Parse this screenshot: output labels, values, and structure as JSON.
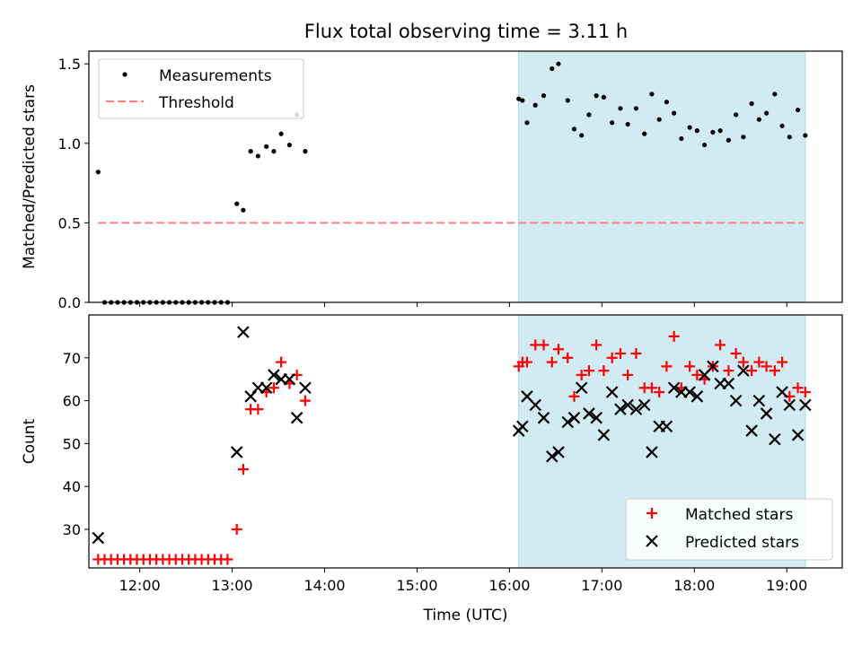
{
  "title": "Flux total observing time = 3.11 h",
  "colors": {
    "shade": "#add8e6",
    "threshold": "#ff7f7f",
    "matched": "#ff0000",
    "predicted": "#000000",
    "measurement": "#000000"
  },
  "chart_data": [
    {
      "type": "scatter",
      "ylabel": "Matched/Predicted stars",
      "xlim": [
        11.45,
        19.6
      ],
      "ylim": [
        0,
        1.58
      ],
      "x_is_time_of_day_hours": true,
      "grid": false,
      "legend_position": "top-left",
      "shaded_interval": [
        16.1,
        19.2
      ],
      "yticks": [
        "0.0",
        "0.5",
        "1.0",
        "1.5"
      ],
      "ytick_values": [
        0,
        0.5,
        1.0,
        1.5
      ],
      "threshold": {
        "name": "Threshold",
        "value": 0.5,
        "x": [
          11.55,
          19.18
        ]
      },
      "series": [
        {
          "name": "Measurements",
          "points": [
            [
              11.55,
              0.82
            ],
            [
              11.62,
              0.0
            ],
            [
              11.69,
              0.0
            ],
            [
              11.76,
              0.0
            ],
            [
              11.83,
              0.0
            ],
            [
              11.9,
              0.0
            ],
            [
              11.97,
              0.0
            ],
            [
              12.04,
              0.0
            ],
            [
              12.11,
              0.0
            ],
            [
              12.18,
              0.0
            ],
            [
              12.25,
              0.0
            ],
            [
              12.32,
              0.0
            ],
            [
              12.39,
              0.0
            ],
            [
              12.46,
              0.0
            ],
            [
              12.53,
              0.0
            ],
            [
              12.6,
              0.0
            ],
            [
              12.67,
              0.0
            ],
            [
              12.74,
              0.0
            ],
            [
              12.81,
              0.0
            ],
            [
              12.88,
              0.0
            ],
            [
              12.95,
              0.0
            ],
            [
              13.05,
              0.62
            ],
            [
              13.12,
              0.58
            ],
            [
              13.2,
              0.95
            ],
            [
              13.28,
              0.92
            ],
            [
              13.37,
              0.98
            ],
            [
              13.45,
              0.95
            ],
            [
              13.53,
              1.06
            ],
            [
              13.62,
              0.99
            ],
            [
              13.7,
              1.18
            ],
            [
              13.79,
              0.95
            ],
            [
              16.1,
              1.28
            ],
            [
              16.14,
              1.27
            ],
            [
              16.19,
              1.13
            ],
            [
              16.28,
              1.24
            ],
            [
              16.37,
              1.3
            ],
            [
              16.46,
              1.47
            ],
            [
              16.53,
              1.5
            ],
            [
              16.63,
              1.27
            ],
            [
              16.7,
              1.09
            ],
            [
              16.78,
              1.05
            ],
            [
              16.86,
              1.18
            ],
            [
              16.94,
              1.3
            ],
            [
              17.02,
              1.29
            ],
            [
              17.11,
              1.13
            ],
            [
              17.2,
              1.22
            ],
            [
              17.28,
              1.12
            ],
            [
              17.37,
              1.22
            ],
            [
              17.46,
              1.06
            ],
            [
              17.54,
              1.31
            ],
            [
              17.62,
              1.15
            ],
            [
              17.7,
              1.26
            ],
            [
              17.78,
              1.19
            ],
            [
              17.86,
              1.03
            ],
            [
              17.95,
              1.1
            ],
            [
              18.03,
              1.08
            ],
            [
              18.11,
              0.99
            ],
            [
              18.2,
              1.07
            ],
            [
              18.28,
              1.08
            ],
            [
              18.37,
              1.02
            ],
            [
              18.45,
              1.18
            ],
            [
              18.53,
              1.04
            ],
            [
              18.62,
              1.25
            ],
            [
              18.7,
              1.15
            ],
            [
              18.78,
              1.19
            ],
            [
              18.87,
              1.31
            ],
            [
              18.95,
              1.11
            ],
            [
              19.03,
              1.04
            ],
            [
              19.12,
              1.21
            ],
            [
              19.2,
              1.05
            ]
          ]
        }
      ]
    },
    {
      "type": "scatter",
      "xlabel": "Time (UTC)",
      "ylabel": "Count",
      "xlim": [
        11.45,
        19.6
      ],
      "ylim": [
        21,
        80
      ],
      "x_is_time_of_day_hours": true,
      "grid": false,
      "legend_position": "bottom-right",
      "shaded_interval": [
        16.1,
        19.2
      ],
      "yticks": [
        "30",
        "40",
        "50",
        "60",
        "70"
      ],
      "ytick_values": [
        30,
        40,
        50,
        60,
        70
      ],
      "xticks": [
        "12:00",
        "13:00",
        "14:00",
        "15:00",
        "16:00",
        "17:00",
        "18:00",
        "19:00"
      ],
      "xtick_values": [
        12,
        13,
        14,
        15,
        16,
        17,
        18,
        19
      ],
      "series": [
        {
          "name": "Matched stars",
          "points": [
            [
              11.55,
              23
            ],
            [
              11.62,
              23
            ],
            [
              11.69,
              23
            ],
            [
              11.76,
              23
            ],
            [
              11.83,
              23
            ],
            [
              11.9,
              23
            ],
            [
              11.97,
              23
            ],
            [
              12.04,
              23
            ],
            [
              12.11,
              23
            ],
            [
              12.18,
              23
            ],
            [
              12.25,
              23
            ],
            [
              12.32,
              23
            ],
            [
              12.39,
              23
            ],
            [
              12.46,
              23
            ],
            [
              12.53,
              23
            ],
            [
              12.6,
              23
            ],
            [
              12.67,
              23
            ],
            [
              12.74,
              23
            ],
            [
              12.81,
              23
            ],
            [
              12.88,
              23
            ],
            [
              12.95,
              23
            ],
            [
              13.05,
              30
            ],
            [
              13.12,
              44
            ],
            [
              13.2,
              58
            ],
            [
              13.28,
              58
            ],
            [
              13.37,
              62
            ],
            [
              13.45,
              63
            ],
            [
              13.53,
              69
            ],
            [
              13.62,
              64
            ],
            [
              13.7,
              66
            ],
            [
              13.79,
              60
            ],
            [
              16.1,
              68
            ],
            [
              16.14,
              69
            ],
            [
              16.19,
              69
            ],
            [
              16.28,
              73
            ],
            [
              16.37,
              73
            ],
            [
              16.46,
              69
            ],
            [
              16.53,
              72
            ],
            [
              16.63,
              70
            ],
            [
              16.7,
              61
            ],
            [
              16.78,
              66
            ],
            [
              16.86,
              67
            ],
            [
              16.94,
              73
            ],
            [
              17.02,
              67
            ],
            [
              17.11,
              70
            ],
            [
              17.2,
              71
            ],
            [
              17.28,
              66
            ],
            [
              17.37,
              71
            ],
            [
              17.46,
              63
            ],
            [
              17.54,
              63
            ],
            [
              17.62,
              62
            ],
            [
              17.7,
              68
            ],
            [
              17.78,
              75
            ],
            [
              17.86,
              63
            ],
            [
              17.95,
              68
            ],
            [
              18.03,
              66
            ],
            [
              18.11,
              65
            ],
            [
              18.2,
              68
            ],
            [
              18.28,
              73
            ],
            [
              18.37,
              67
            ],
            [
              18.45,
              71
            ],
            [
              18.53,
              69
            ],
            [
              18.62,
              67
            ],
            [
              18.7,
              69
            ],
            [
              18.78,
              68
            ],
            [
              18.87,
              67
            ],
            [
              18.95,
              69
            ],
            [
              19.03,
              61
            ],
            [
              19.12,
              63
            ],
            [
              19.2,
              62
            ]
          ]
        },
        {
          "name": "Predicted stars",
          "points": [
            [
              11.55,
              28
            ],
            [
              13.05,
              48
            ],
            [
              13.12,
              76
            ],
            [
              13.2,
              61
            ],
            [
              13.28,
              63
            ],
            [
              13.37,
              63
            ],
            [
              13.45,
              66
            ],
            [
              13.53,
              65
            ],
            [
              13.62,
              65
            ],
            [
              13.7,
              56
            ],
            [
              13.79,
              63
            ],
            [
              16.1,
              53
            ],
            [
              16.14,
              54
            ],
            [
              16.19,
              61
            ],
            [
              16.28,
              59
            ],
            [
              16.37,
              56
            ],
            [
              16.46,
              47
            ],
            [
              16.53,
              48
            ],
            [
              16.63,
              55
            ],
            [
              16.7,
              56
            ],
            [
              16.78,
              63
            ],
            [
              16.86,
              57
            ],
            [
              16.94,
              56
            ],
            [
              17.02,
              52
            ],
            [
              17.11,
              62
            ],
            [
              17.2,
              58
            ],
            [
              17.28,
              59
            ],
            [
              17.37,
              58
            ],
            [
              17.46,
              59
            ],
            [
              17.54,
              48
            ],
            [
              17.62,
              54
            ],
            [
              17.7,
              54
            ],
            [
              17.78,
              63
            ],
            [
              17.86,
              62
            ],
            [
              17.95,
              62
            ],
            [
              18.03,
              61
            ],
            [
              18.11,
              66
            ],
            [
              18.2,
              68
            ],
            [
              18.28,
              64
            ],
            [
              18.37,
              64
            ],
            [
              18.45,
              60
            ],
            [
              18.53,
              67
            ],
            [
              18.62,
              53
            ],
            [
              18.7,
              60
            ],
            [
              18.78,
              57
            ],
            [
              18.87,
              51
            ],
            [
              18.95,
              62
            ],
            [
              19.03,
              59
            ],
            [
              19.12,
              52
            ],
            [
              19.2,
              59
            ]
          ]
        }
      ]
    }
  ]
}
